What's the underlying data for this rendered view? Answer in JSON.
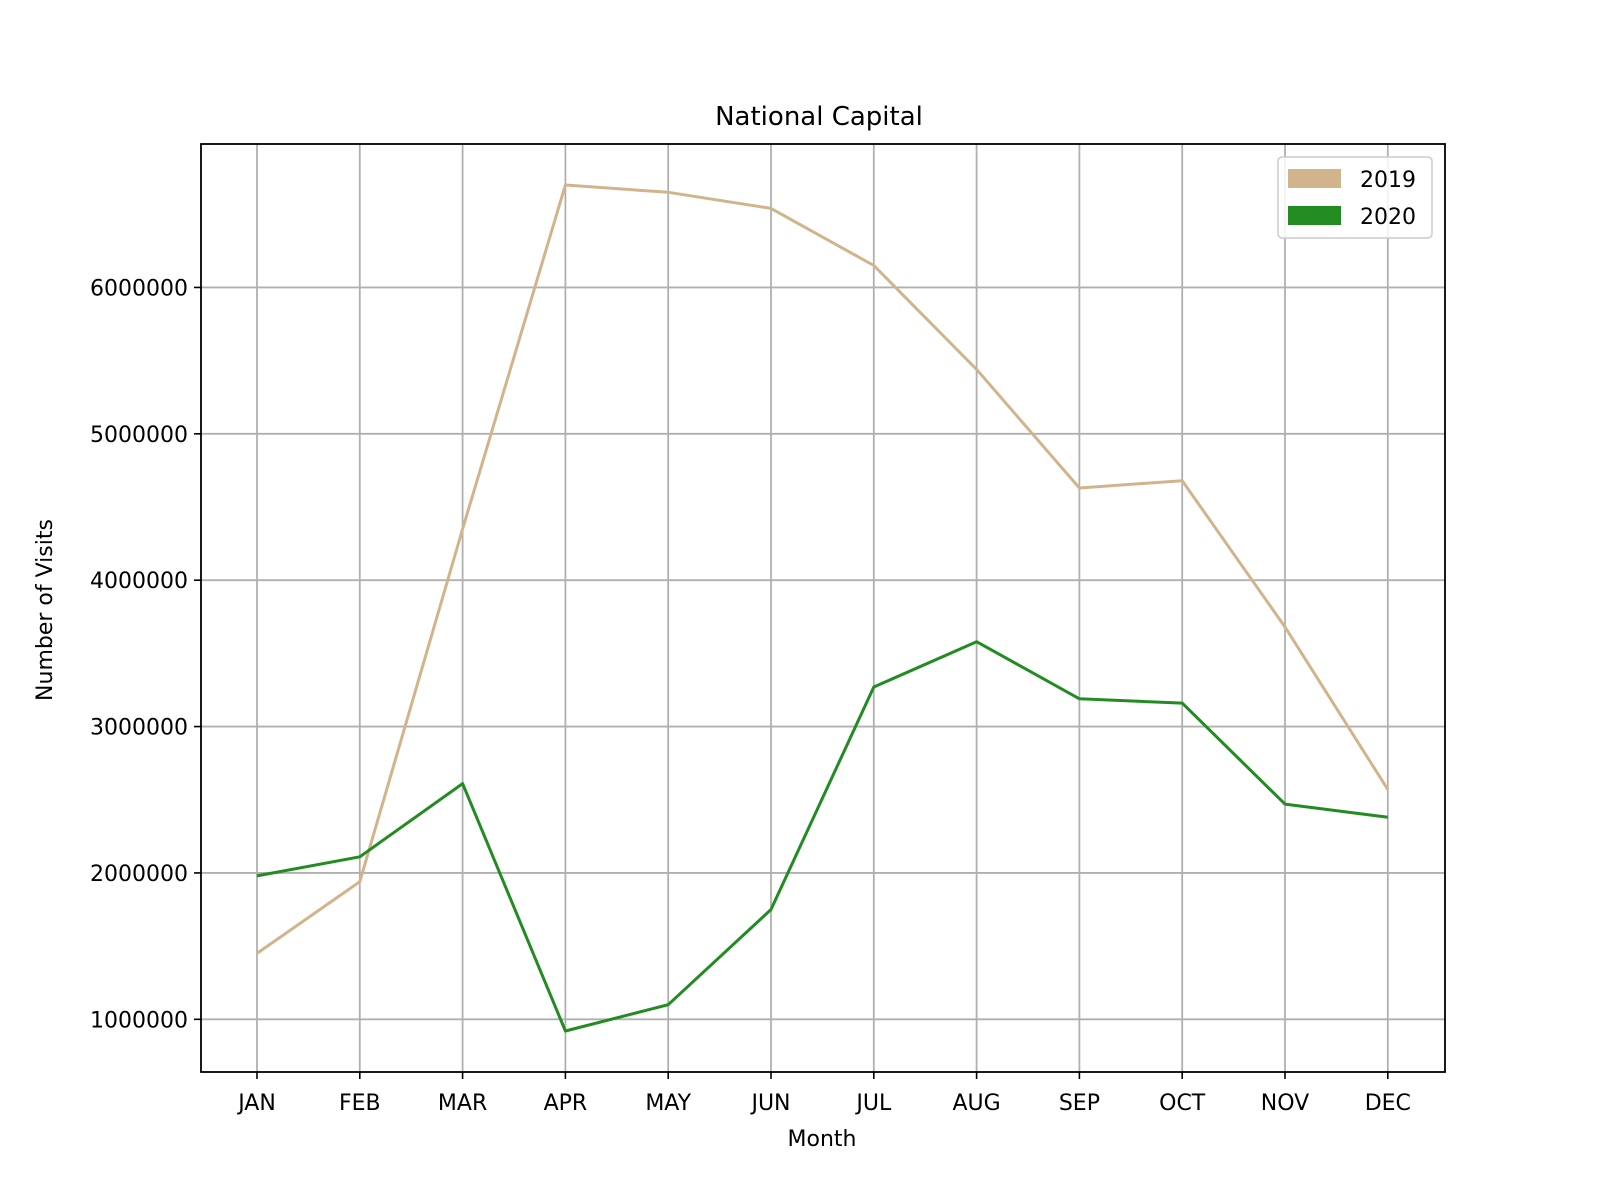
{
  "chart_data": {
    "type": "line",
    "title": "National Capital",
    "xlabel": "Month",
    "ylabel": "Number of Visits",
    "categories": [
      "JAN",
      "FEB",
      "MAR",
      "APR",
      "MAY",
      "JUN",
      "JUL",
      "AUG",
      "SEP",
      "OCT",
      "NOV",
      "DEC"
    ],
    "yticks": [
      1000000,
      2000000,
      3000000,
      4000000,
      5000000,
      6000000
    ],
    "ylim": [
      640000,
      6980000
    ],
    "grid": true,
    "legend_position": "top-right",
    "series": [
      {
        "name": "2019",
        "color": "#d2b48c",
        "values": [
          1450000,
          1940000,
          4350000,
          6700000,
          6650000,
          6540000,
          6150000,
          5440000,
          4630000,
          4680000,
          3680000,
          2570000
        ]
      },
      {
        "name": "2020",
        "color": "#228b22",
        "values": [
          1980000,
          2110000,
          2610000,
          920000,
          1100000,
          1750000,
          3270000,
          3580000,
          3190000,
          3160000,
          2470000,
          2380000
        ]
      }
    ]
  }
}
